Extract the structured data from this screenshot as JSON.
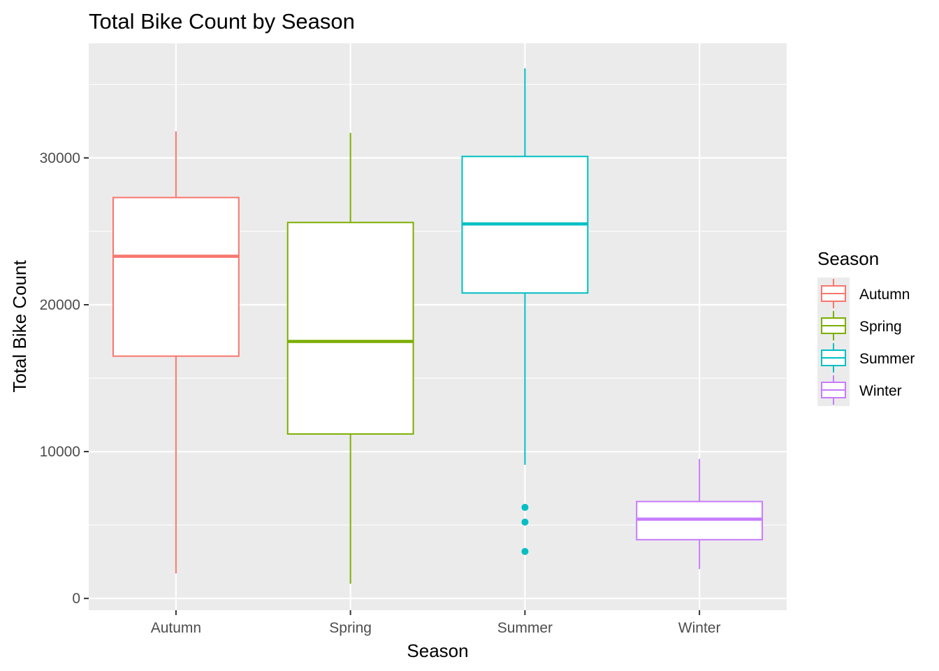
{
  "chart_data": {
    "type": "boxplot",
    "title": "Total Bike Count by Season",
    "xlabel": "Season",
    "ylabel": "Total Bike Count",
    "ylim": [
      -800,
      37800
    ],
    "yticks": [
      0,
      10000,
      20000,
      30000
    ],
    "ytick_labels": [
      "0",
      "10000",
      "20000",
      "30000"
    ],
    "y_minor_ticks": [
      5000,
      15000,
      25000,
      35000
    ],
    "categories": [
      "Autumn",
      "Spring",
      "Summer",
      "Winter"
    ],
    "grid": true,
    "legend": {
      "title": "Season",
      "position": "right",
      "entries": [
        "Autumn",
        "Spring",
        "Summer",
        "Winter"
      ]
    },
    "colors": {
      "Autumn": "#F8766D",
      "Spring": "#7CAE00",
      "Summer": "#00BFC4",
      "Winter": "#C77CFF",
      "panel_background": "#EBEBEB",
      "grid": "#FFFFFF"
    },
    "boxes": [
      {
        "category": "Autumn",
        "whisker_low": 1700,
        "q1": 16500,
        "median": 23300,
        "q3": 27300,
        "whisker_high": 31800,
        "outliers": []
      },
      {
        "category": "Spring",
        "whisker_low": 1000,
        "q1": 11200,
        "median": 17500,
        "q3": 25600,
        "whisker_high": 31700,
        "outliers": []
      },
      {
        "category": "Summer",
        "whisker_low": 9100,
        "q1": 20800,
        "median": 25500,
        "q3": 30100,
        "whisker_high": 36100,
        "outliers": [
          6200,
          5200,
          3200
        ]
      },
      {
        "category": "Winter",
        "whisker_low": 2000,
        "q1": 4000,
        "median": 5400,
        "q3": 6600,
        "whisker_high": 9500,
        "outliers": []
      }
    ]
  }
}
